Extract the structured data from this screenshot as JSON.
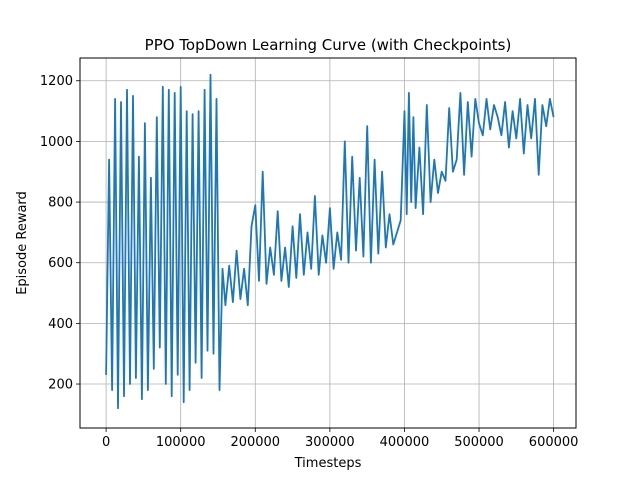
{
  "chart_data": {
    "type": "line",
    "title": "PPO TopDown Learning Curve (with Checkpoints)",
    "xlabel": "Timesteps",
    "ylabel": "Episode Reward",
    "xlim": [
      -35000,
      630000
    ],
    "ylim": [
      55,
      1275
    ],
    "xticks": [
      0,
      100000,
      200000,
      300000,
      400000,
      500000,
      600000
    ],
    "yticks": [
      200,
      400,
      600,
      800,
      1000,
      1200
    ],
    "xtick_labels": [
      "0",
      "100000",
      "200000",
      "300000",
      "400000",
      "500000",
      "600000"
    ],
    "ytick_labels": [
      "200",
      "400",
      "600",
      "800",
      "1000",
      "1200"
    ],
    "grid": true,
    "series": [
      {
        "color": "#1f77b4",
        "x": [
          0,
          4000,
          8000,
          12000,
          16000,
          20000,
          24000,
          28000,
          32000,
          36000,
          40000,
          44000,
          48000,
          52000,
          56000,
          60000,
          64000,
          68000,
          72000,
          76000,
          80000,
          84000,
          88000,
          92000,
          96000,
          100000,
          104000,
          108000,
          112000,
          116000,
          120000,
          124000,
          128000,
          132000,
          136000,
          140000,
          144000,
          148000,
          152000,
          156000,
          160000,
          165000,
          170000,
          175000,
          180000,
          185000,
          190000,
          195000,
          200000,
          205000,
          210000,
          215000,
          220000,
          225000,
          230000,
          235000,
          240000,
          245000,
          250000,
          255000,
          260000,
          265000,
          270000,
          275000,
          280000,
          285000,
          290000,
          295000,
          300000,
          305000,
          310000,
          315000,
          320000,
          325000,
          330000,
          335000,
          340000,
          345000,
          350000,
          355000,
          360000,
          365000,
          370000,
          375000,
          380000,
          385000,
          390000,
          395000,
          400000,
          403000,
          406000,
          409000,
          412000,
          415000,
          420000,
          425000,
          430000,
          435000,
          440000,
          445000,
          450000,
          455000,
          460000,
          465000,
          470000,
          475000,
          480000,
          485000,
          490000,
          495000,
          500000,
          505000,
          510000,
          515000,
          520000,
          525000,
          530000,
          535000,
          540000,
          545000,
          550000,
          555000,
          560000,
          565000,
          570000,
          575000,
          580000,
          585000,
          590000,
          595000,
          600000
        ],
        "y": [
          230,
          940,
          180,
          1140,
          120,
          1130,
          160,
          1170,
          200,
          1150,
          220,
          950,
          150,
          1060,
          180,
          880,
          250,
          1080,
          320,
          1180,
          200,
          1170,
          160,
          1160,
          230,
          1180,
          140,
          1100,
          180,
          1090,
          270,
          1100,
          220,
          1170,
          310,
          1220,
          300,
          1140,
          180,
          580,
          460,
          590,
          470,
          640,
          480,
          580,
          460,
          720,
          790,
          540,
          900,
          530,
          650,
          560,
          770,
          540,
          650,
          520,
          720,
          550,
          760,
          560,
          700,
          580,
          820,
          560,
          690,
          600,
          780,
          580,
          700,
          610,
          1000,
          600,
          950,
          640,
          880,
          620,
          1050,
          600,
          940,
          630,
          900,
          650,
          760,
          660,
          700,
          740,
          1100,
          760,
          1160,
          800,
          1080,
          780,
          980,
          760,
          1120,
          800,
          940,
          830,
          900,
          870,
          1110,
          900,
          940,
          1160,
          890,
          1130,
          950,
          1140,
          1060,
          1020,
          1140,
          1040,
          1120,
          1080,
          1020,
          1130,
          980,
          1100,
          1010,
          1140,
          960,
          1120,
          1010,
          1140,
          890,
          1120,
          1050,
          1140,
          1080
        ]
      }
    ]
  }
}
